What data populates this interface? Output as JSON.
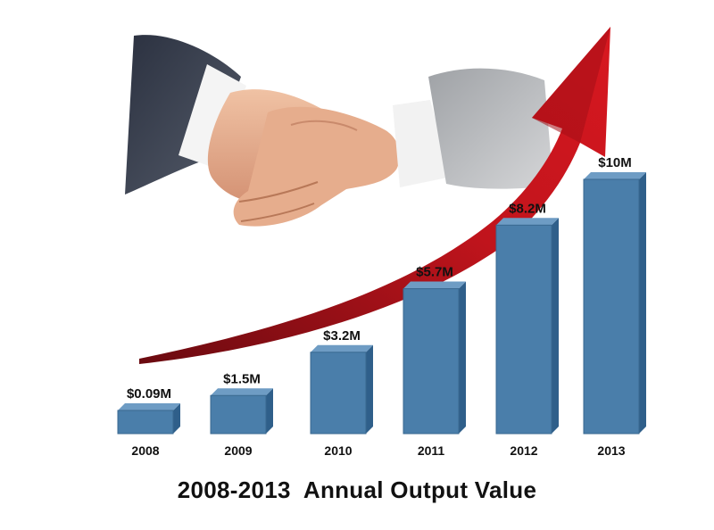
{
  "chart_data": {
    "type": "bar",
    "title": "2008-2013  Annual Output Value",
    "categories": [
      "2008",
      "2009",
      "2010",
      "2011",
      "2012",
      "2013"
    ],
    "values": [
      0.09,
      1.5,
      3.2,
      5.7,
      8.2,
      10
    ],
    "value_labels": [
      "$0.09M",
      "$1.5M",
      "$3.2M",
      "$5.7M",
      "$8.2M",
      "$10M"
    ],
    "unit": "$M",
    "xlabel": "",
    "ylabel": "",
    "grid": false,
    "legend": "none"
  },
  "colors": {
    "bar_front": "#4a7eaa",
    "bar_top": "#6e9cc4",
    "bar_side": "#2f5f8a",
    "arrow": "#b0121a",
    "arrow_dark": "#6a0a10",
    "text": "#111111"
  },
  "illustration": {
    "icon": "handshake-icon",
    "arrow_icon": "trend-arrow-icon"
  }
}
